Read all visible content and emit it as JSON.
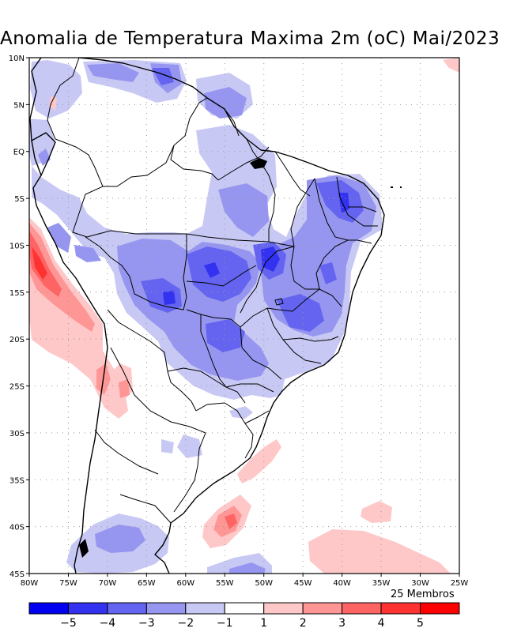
{
  "title": "Anomalia de Temperatura Maxima 2m (oC) Mai/2023",
  "ensemble_label": "25 Membros",
  "map": {
    "lon_range": [
      -80,
      -25
    ],
    "lat_range": [
      -45,
      10
    ],
    "lon_ticks": [
      "80W",
      "75W",
      "70W",
      "65W",
      "60W",
      "55W",
      "50W",
      "45W",
      "40W",
      "35W",
      "30W",
      "25W"
    ],
    "lat_ticks": [
      "10N",
      "5N",
      "EQ",
      "5S",
      "10S",
      "15S",
      "20S",
      "25S",
      "30S",
      "35S",
      "40S",
      "45S"
    ]
  },
  "colorbar": {
    "labels": [
      "-5",
      "-4",
      "-3",
      "-2",
      "-1",
      "1",
      "2",
      "3",
      "4",
      "5"
    ],
    "colors": [
      "#0000f0",
      "#3232f0",
      "#6464f0",
      "#9696f0",
      "#c8c8f5",
      "#ffffff",
      "#ffc8c8",
      "#ff9696",
      "#ff6464",
      "#ff3232",
      "#ff0000"
    ]
  },
  "colors": {
    "neg1": "#c8c8f5",
    "neg2": "#9696f0",
    "neg3": "#6464f0",
    "neg4": "#3232f0",
    "pos1": "#ffc8c8",
    "pos2": "#ff9696",
    "pos3": "#ff6464",
    "pos4": "#ff3232"
  }
}
